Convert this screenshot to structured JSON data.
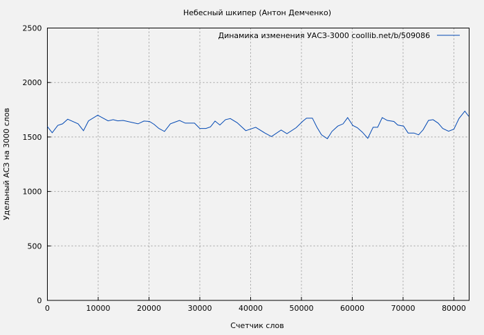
{
  "chart_data": {
    "type": "line",
    "title": "Небесный шкипер (Антон Демченко)",
    "xlabel": "Счетчик слов",
    "ylabel": "Удельный АСЗ на 3000 слов",
    "xlim": [
      0,
      83000
    ],
    "ylim": [
      0,
      2500
    ],
    "xticks": [
      0,
      10000,
      20000,
      30000,
      40000,
      50000,
      60000,
      70000,
      80000
    ],
    "yticks": [
      0,
      500,
      1000,
      1500,
      2000,
      2500
    ],
    "grid": true,
    "legend_position": "top-right",
    "series": [
      {
        "name": "Динамика изменения УАСЗ-3000  coollib.net/b/509086",
        "color": "#0047b3",
        "x": [
          0,
          950,
          2050,
          3000,
          4000,
          6050,
          7100,
          8100,
          9900,
          11950,
          12950,
          13850,
          14900,
          17850,
          19000,
          20100,
          21000,
          21950,
          23050,
          24200,
          26000,
          27150,
          28950,
          30000,
          31200,
          32100,
          33000,
          33950,
          35050,
          36000,
          37350,
          39050,
          41000,
          42800,
          44100,
          46000,
          47150,
          48950,
          50300,
          51000,
          52150,
          53050,
          53950,
          55100,
          56000,
          57150,
          58200,
          59100,
          60100,
          61000,
          62000,
          63050,
          64100,
          65000,
          65900,
          66900,
          68200,
          68950,
          70100,
          71000,
          72150,
          73050,
          73950,
          75000,
          75900,
          76900,
          77800,
          78950,
          80000,
          81000,
          82150,
          82900
        ],
        "y": [
          1596,
          1539,
          1606,
          1621,
          1663,
          1621,
          1558,
          1648,
          1700,
          1648,
          1659,
          1648,
          1652,
          1621,
          1646,
          1642,
          1616,
          1578,
          1551,
          1621,
          1652,
          1627,
          1627,
          1578,
          1578,
          1593,
          1646,
          1610,
          1659,
          1669,
          1631,
          1558,
          1589,
          1536,
          1504,
          1564,
          1530,
          1585,
          1646,
          1673,
          1673,
          1589,
          1520,
          1484,
          1551,
          1600,
          1621,
          1678,
          1606,
          1585,
          1543,
          1488,
          1589,
          1589,
          1678,
          1652,
          1642,
          1610,
          1600,
          1536,
          1536,
          1520,
          1567,
          1652,
          1659,
          1627,
          1578,
          1553,
          1572,
          1669,
          1737,
          1690
        ]
      }
    ]
  }
}
